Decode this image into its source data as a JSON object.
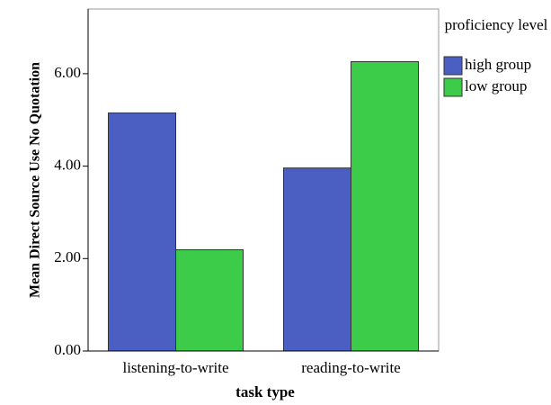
{
  "chart_data": {
    "type": "bar",
    "categories": [
      "listening-to-write",
      "reading-to-write"
    ],
    "series": [
      {
        "name": "high group",
        "color": "#4a5fc1",
        "values": [
          5.15,
          3.96
        ]
      },
      {
        "name": "low group",
        "color": "#3ccc4a",
        "values": [
          2.19,
          6.26
        ]
      }
    ],
    "x_label": "task type",
    "y_label": "Mean Direct Source Use No Quotation",
    "legend_title": "proficiency level",
    "legend": "right",
    "ylim": [
      0,
      7.4
    ],
    "yticks": [
      {
        "value": 0,
        "label": "0.00"
      },
      {
        "value": 2,
        "label": "2.00"
      },
      {
        "value": 4,
        "label": "4.00"
      },
      {
        "value": 6,
        "label": "6.00"
      }
    ]
  }
}
